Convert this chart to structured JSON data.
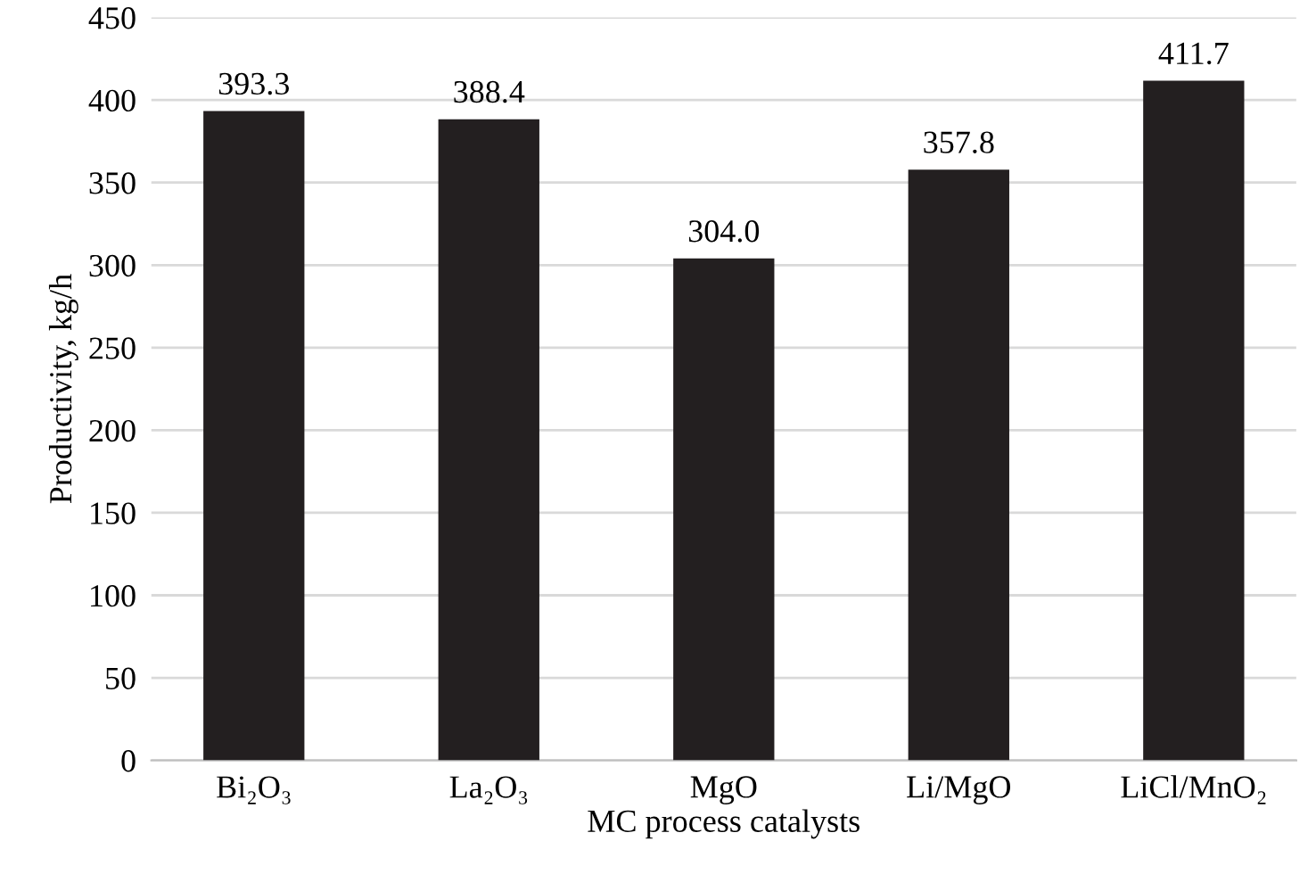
{
  "chart_data": {
    "type": "bar",
    "xlabel": "MC process catalysts",
    "ylabel": "Productivity, kg/h",
    "categories": [
      "Bi₂O₃",
      "La₂O₃",
      "MgO",
      "Li/MgO",
      "LiCl/MnO₂"
    ],
    "values": [
      393.3,
      388.4,
      304.0,
      357.8,
      411.7
    ],
    "value_labels": [
      "393.3",
      "388.4",
      "304.0",
      "357.8",
      "411.7"
    ],
    "color": "#231f20",
    "ylim": [
      0,
      450
    ],
    "yticks": [
      0,
      50,
      100,
      150,
      200,
      250,
      300,
      350,
      400,
      450
    ],
    "grid": "y",
    "legend": false
  }
}
